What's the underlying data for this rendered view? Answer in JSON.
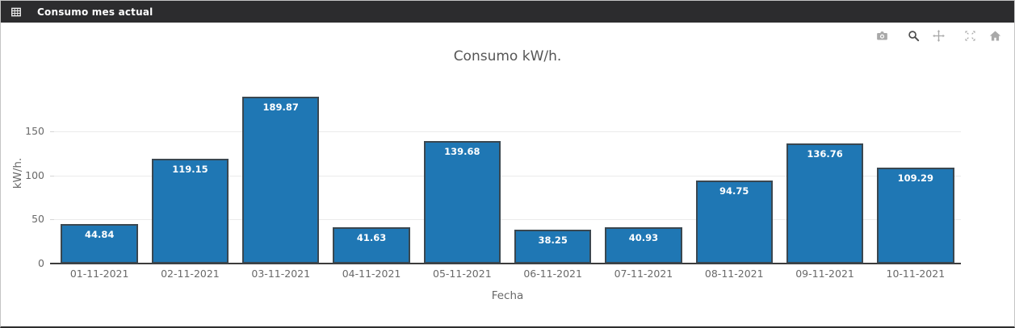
{
  "panel": {
    "title": "Consumo mes actual",
    "header_icon": "table-grid-icon"
  },
  "modebar": {
    "buttons": [
      {
        "name": "download-plot",
        "icon": "camera-icon",
        "active": false
      },
      {
        "name": "zoom",
        "icon": "zoom-icon",
        "active": true
      },
      {
        "name": "pan",
        "icon": "pan-icon",
        "active": false
      },
      {
        "name": "autoscale",
        "icon": "autoscale-icon",
        "active": false
      },
      {
        "name": "reset-axes",
        "icon": "home-icon",
        "active": false
      }
    ]
  },
  "chart_data": {
    "type": "bar",
    "title": "Consumo kW/h.",
    "xlabel": "Fecha",
    "ylabel": "kW/h.",
    "categories": [
      "01-11-2021",
      "02-11-2021",
      "03-11-2021",
      "04-11-2021",
      "05-11-2021",
      "06-11-2021",
      "07-11-2021",
      "08-11-2021",
      "09-11-2021",
      "10-11-2021"
    ],
    "values": [
      44.84,
      119.15,
      189.87,
      41.63,
      139.68,
      38.25,
      40.93,
      94.75,
      136.76,
      109.29
    ],
    "value_labels": "inside-top",
    "yticks": [
      0,
      50,
      100,
      150
    ],
    "ylim": [
      0,
      208
    ],
    "grid": true,
    "legend": "none",
    "colors": {
      "bar_fill": "#1f77b4",
      "bar_border": "#3a4750",
      "grid_line": "#ebebeb",
      "tick_extension": "#d5d5d5",
      "axis_line": "#3b3b3b",
      "tick_text": "#696969",
      "title_text": "#555555"
    }
  }
}
